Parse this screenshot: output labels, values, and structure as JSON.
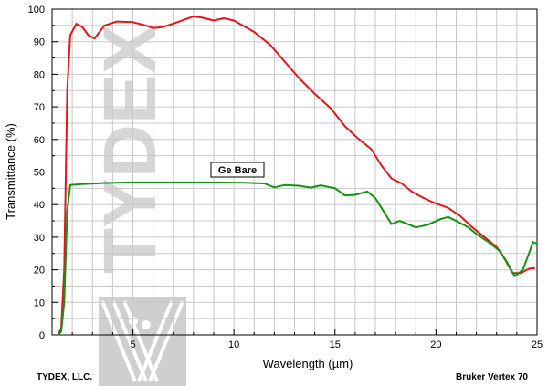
{
  "chart_data": {
    "type": "line",
    "xlabel": "Wavelength (µm)",
    "ylabel": "Transmittance (%)",
    "xlim": [
      1,
      25
    ],
    "ylim": [
      0,
      100
    ],
    "x_ticks": [
      5,
      10,
      15,
      20,
      25
    ],
    "y_ticks": [
      0,
      10,
      20,
      30,
      40,
      50,
      60,
      70,
      80,
      90,
      100
    ],
    "grid": true,
    "series": [
      {
        "color": "#e0161d",
        "points": [
          [
            1.3,
            0
          ],
          [
            1.45,
            2
          ],
          [
            1.6,
            20
          ],
          [
            1.75,
            75
          ],
          [
            1.9,
            92
          ],
          [
            2.2,
            95.5
          ],
          [
            2.5,
            94.5
          ],
          [
            2.8,
            92
          ],
          [
            3.1,
            91
          ],
          [
            3.6,
            95
          ],
          [
            4.2,
            96.2
          ],
          [
            5.0,
            96
          ],
          [
            5.5,
            95.2
          ],
          [
            6.0,
            94.2
          ],
          [
            6.5,
            94.5
          ],
          [
            7.2,
            96
          ],
          [
            8.0,
            97.8
          ],
          [
            8.5,
            97.3
          ],
          [
            9.0,
            96.5
          ],
          [
            9.5,
            97.2
          ],
          [
            10.0,
            96.5
          ],
          [
            11.0,
            93
          ],
          [
            11.8,
            89
          ],
          [
            12.5,
            84
          ],
          [
            13.2,
            79
          ],
          [
            14.0,
            74
          ],
          [
            14.8,
            69.5
          ],
          [
            15.5,
            64
          ],
          [
            16.2,
            60
          ],
          [
            16.8,
            57
          ],
          [
            17.3,
            52
          ],
          [
            17.8,
            48
          ],
          [
            18.3,
            46.5
          ],
          [
            18.8,
            44
          ],
          [
            19.4,
            42
          ],
          [
            20.0,
            40.3
          ],
          [
            20.6,
            39
          ],
          [
            21.2,
            36.5
          ],
          [
            21.8,
            33
          ],
          [
            22.4,
            30
          ],
          [
            23.0,
            27
          ],
          [
            23.5,
            22.5
          ],
          [
            23.8,
            19
          ],
          [
            24.2,
            19
          ],
          [
            24.6,
            20.3
          ],
          [
            24.9,
            20.5
          ]
        ]
      },
      {
        "color": "#159215",
        "points": [
          [
            1.3,
            0
          ],
          [
            1.45,
            1
          ],
          [
            1.6,
            10
          ],
          [
            1.75,
            38
          ],
          [
            1.9,
            46
          ],
          [
            2.5,
            46.3
          ],
          [
            3.5,
            46.6
          ],
          [
            5.0,
            46.8
          ],
          [
            7.0,
            46.8
          ],
          [
            9.0,
            46.8
          ],
          [
            10.5,
            46.7
          ],
          [
            11.5,
            46.5
          ],
          [
            12.0,
            45.3
          ],
          [
            12.5,
            46
          ],
          [
            13.2,
            45.8
          ],
          [
            13.8,
            45.2
          ],
          [
            14.3,
            45.9
          ],
          [
            15.0,
            45
          ],
          [
            15.5,
            42.8
          ],
          [
            16.0,
            43
          ],
          [
            16.6,
            44
          ],
          [
            17.0,
            42
          ],
          [
            17.4,
            38
          ],
          [
            17.8,
            34
          ],
          [
            18.2,
            35
          ],
          [
            18.6,
            34
          ],
          [
            19.0,
            33
          ],
          [
            19.6,
            33.8
          ],
          [
            20.2,
            35.5
          ],
          [
            20.6,
            36.2
          ],
          [
            21.0,
            35
          ],
          [
            21.6,
            33
          ],
          [
            22.0,
            31
          ],
          [
            22.6,
            28.5
          ],
          [
            23.2,
            25.5
          ],
          [
            23.7,
            20
          ],
          [
            23.9,
            18
          ],
          [
            24.3,
            20
          ],
          [
            24.6,
            25
          ],
          [
            24.8,
            28.5
          ],
          [
            25.0,
            28
          ]
        ]
      }
    ],
    "annotation": "Ge Bare"
  },
  "watermark": {
    "text": "TYDEX"
  },
  "footer": {
    "left": "TYDEX, LLC.",
    "right": "Bruker Vertex 70"
  }
}
